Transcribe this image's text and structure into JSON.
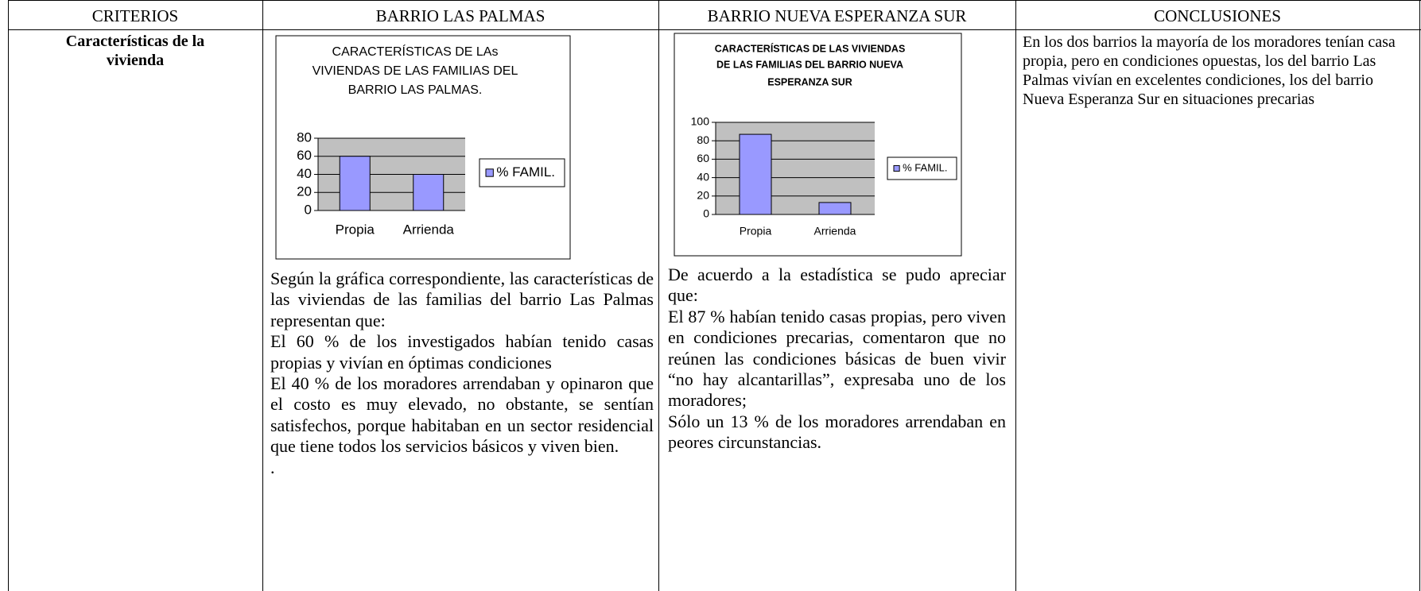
{
  "table": {
    "headers": [
      "CRITERIOS",
      "BARRIO LAS PALMAS",
      "BARRIO NUEVA ESPERANZA SUR",
      "CONCLUSIONES"
    ],
    "rows": [
      {
        "criterio": "Características de la vivienda",
        "las_palmas": {
          "chart": {
            "type": "bar",
            "title": [
              "CARACTERÍSTICAS DE LAs",
              "VIVIENDAS DE LAS FAMILIAS DEL",
              "BARRIO LAS PALMAS."
            ],
            "categories": [
              "Propia",
              "Arrienda"
            ],
            "series": [
              {
                "name": "% FAMIL.",
                "color": "#9999ff",
                "values": [
                  60,
                  40
                ]
              }
            ],
            "ylim": [
              0,
              80
            ],
            "yticks": [
              0,
              20,
              40,
              60,
              80
            ],
            "grid": true
          },
          "paragraphs": [
            "Según la gráfica correspondiente, las características de las viviendas de las familias del barrio Las Palmas representan que:",
            "El 60 % de los investigados habían tenido casas propias y vivían en óptimas condiciones",
            "El 40 % de los moradores arrendaban y opinaron que el costo es muy elevado, no obstante, se sentían satisfechos, porque habitaban en un sector residencial que tiene todos los servicios básicos y viven bien.",
            "."
          ]
        },
        "nueva_esperanza": {
          "chart": {
            "type": "bar",
            "title": [
              "CARACTERÍSTICAS DE LAS VIVIENDAS",
              "DE LAS FAMILIAS DEL BARRIO NUEVA",
              "ESPERANZA SUR"
            ],
            "categories": [
              "Propia",
              "Arrienda"
            ],
            "series": [
              {
                "name": "% FAMIL.",
                "color": "#9999ff",
                "values": [
                  87,
                  13
                ]
              }
            ],
            "ylim": [
              0,
              100
            ],
            "yticks": [
              0,
              20,
              40,
              60,
              80,
              100
            ],
            "grid": true
          },
          "paragraphs": [
            "De acuerdo a la estadística se pudo apreciar que:",
            "El 87 % habían tenido casas propias, pero viven en condiciones precarias, comentaron que no reúnen las condiciones básicas de buen vivir “no hay alcantarillas”, expresaba uno de los moradores;",
            "Sólo un 13 % de los moradores arrendaban en peores circunstancias."
          ]
        },
        "conclusion": "En los dos barrios la mayoría de los moradores tenían casa propia, pero en condiciones opuestas, los del barrio Las Palmas vivían en excelentes condiciones, los del barrio Nueva Esperanza Sur en situaciones precarias"
      }
    ]
  }
}
